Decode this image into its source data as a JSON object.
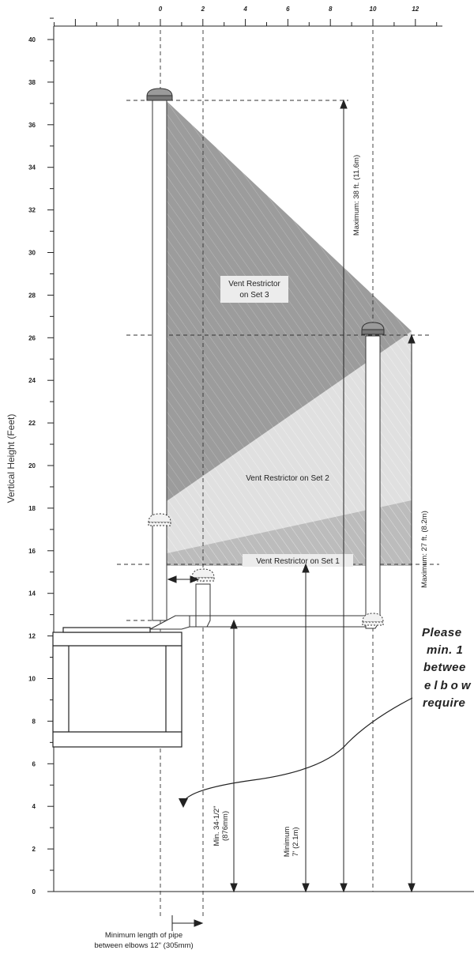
{
  "y_axis": {
    "title": "Vertical Height (Feet)",
    "labels": [
      "0",
      "2",
      "4",
      "6",
      "8",
      "10",
      "12",
      "14",
      "16",
      "18",
      "20",
      "22",
      "24",
      "26",
      "28",
      "30",
      "32",
      "34",
      "36",
      "38",
      "40"
    ]
  },
  "x_axis": {
    "labels": [
      "0",
      "2",
      "4",
      "6",
      "8",
      "10",
      "12"
    ]
  },
  "regions": {
    "set3": "Vent Restrictor on Set 3",
    "set2": "Vent Restrictor on Set 2",
    "set1": "Vent Restrictor on Set 1"
  },
  "dimensions": {
    "max38": "Maximum: 38 ft. (11.6m)",
    "max27": "Maximum: 27 ft. (8.2m)",
    "min7_a": "Minimum",
    "min7_b": "7' (2.1m)",
    "min34_a": "Min. 34-1/2\"",
    "min34_b": "(876mm)"
  },
  "bottom_note": {
    "line1": "Minimum length of pipe",
    "line2": "between elbows 12\" (305mm)"
  },
  "side_note": {
    "line1": "Please",
    "line2": "min. 1",
    "line3": "betwee",
    "line4": "elbow",
    "line5": "require"
  },
  "colors": {
    "set3": "#9a9a9a",
    "set2": "#e0e0e0",
    "set1": "#b9b9b9",
    "label_box": "#ececec"
  }
}
